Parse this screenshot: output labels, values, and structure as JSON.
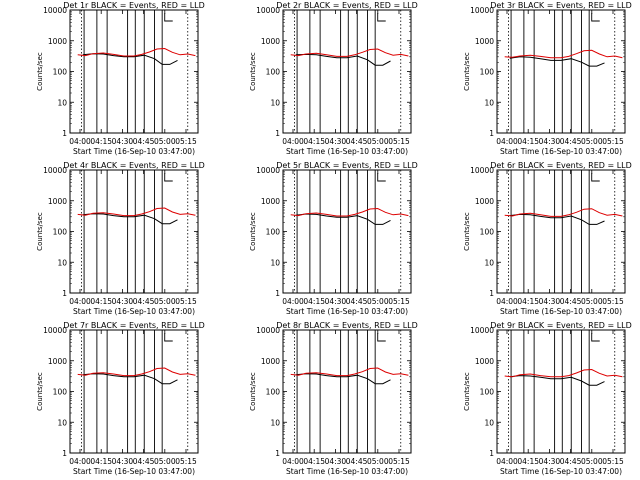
{
  "chart_data": [
    {
      "type": "line",
      "title": "Det 1r BLACK = Events, RED = LLD",
      "xlabel": "Start Time (16-Sep-10 03:47:00)",
      "ylabel": "Counts/sec",
      "yscale": "log",
      "ylim": [
        1,
        10000
      ],
      "xticks": [
        "04:00",
        "04:15",
        "04:30",
        "04:45",
        "05:00",
        "05:15"
      ],
      "yticks": [
        "1",
        "10",
        "100",
        "1000",
        "10000"
      ],
      "series": [
        {
          "name": "Events",
          "color": "#000000",
          "x": [
            0.1,
            0.18,
            0.26,
            0.34,
            0.42,
            0.5,
            0.58,
            0.66,
            0.72,
            0.78,
            0.84
          ],
          "y": [
            350,
            380,
            370,
            330,
            300,
            300,
            340,
            260,
            170,
            170,
            230
          ]
        },
        {
          "name": "LLD",
          "color": "#dd0000",
          "x": [
            0.06,
            0.12,
            0.18,
            0.26,
            0.34,
            0.42,
            0.5,
            0.56,
            0.62,
            0.68,
            0.74,
            0.8,
            0.86,
            0.92,
            0.98
          ],
          "y": [
            350,
            330,
            380,
            400,
            360,
            320,
            320,
            360,
            430,
            540,
            560,
            420,
            350,
            370,
            330
          ]
        }
      ]
    },
    {
      "type": "line",
      "title": "Det 2r BLACK = Events, RED = LLD",
      "xlabel": "Start Time (16-Sep-10 03:47:00)",
      "ylabel": "Counts/sec",
      "yscale": "log",
      "ylim": [
        1,
        10000
      ],
      "xticks": [
        "04:00",
        "04:15",
        "04:30",
        "04:45",
        "05:00",
        "05:15"
      ],
      "yticks": [
        "1",
        "10",
        "100",
        "1000",
        "10000"
      ],
      "series": [
        {
          "name": "Events",
          "color": "#000000",
          "x": [
            0.1,
            0.18,
            0.26,
            0.34,
            0.42,
            0.5,
            0.58,
            0.66,
            0.72,
            0.78,
            0.84
          ],
          "y": [
            350,
            360,
            350,
            310,
            280,
            280,
            320,
            240,
            160,
            160,
            220
          ]
        },
        {
          "name": "LLD",
          "color": "#dd0000",
          "x": [
            0.06,
            0.12,
            0.18,
            0.26,
            0.34,
            0.42,
            0.5,
            0.56,
            0.62,
            0.68,
            0.74,
            0.8,
            0.86,
            0.92,
            0.98
          ],
          "y": [
            350,
            330,
            370,
            390,
            350,
            310,
            310,
            350,
            420,
            520,
            540,
            410,
            340,
            360,
            320
          ]
        }
      ]
    },
    {
      "type": "line",
      "title": "Det 3r BLACK = Events, RED = LLD",
      "xlabel": "Start Time (16-Sep-10 03:47:00)",
      "ylabel": "Counts/sec",
      "yscale": "log",
      "ylim": [
        1,
        10000
      ],
      "xticks": [
        "04:00",
        "04:15",
        "04:30",
        "04:45",
        "05:00",
        "05:15"
      ],
      "yticks": [
        "1",
        "10",
        "100",
        "1000",
        "10000"
      ],
      "series": [
        {
          "name": "Events",
          "color": "#000000",
          "x": [
            0.1,
            0.18,
            0.26,
            0.34,
            0.42,
            0.5,
            0.58,
            0.66,
            0.72,
            0.78,
            0.84
          ],
          "y": [
            270,
            300,
            290,
            260,
            230,
            230,
            260,
            200,
            150,
            150,
            190
          ]
        },
        {
          "name": "LLD",
          "color": "#dd0000",
          "x": [
            0.06,
            0.12,
            0.18,
            0.26,
            0.34,
            0.42,
            0.5,
            0.56,
            0.62,
            0.68,
            0.74,
            0.8,
            0.86,
            0.92,
            0.98
          ],
          "y": [
            300,
            290,
            320,
            340,
            310,
            280,
            280,
            310,
            380,
            470,
            490,
            370,
            300,
            320,
            280
          ]
        }
      ]
    },
    {
      "type": "line",
      "title": "Det 4r BLACK = Events, RED = LLD",
      "xlabel": "Start Time (16-Sep-10 03:47:00)",
      "ylabel": "Counts/sec",
      "yscale": "log",
      "ylim": [
        1,
        10000
      ],
      "xticks": [
        "04:00",
        "04:15",
        "04:30",
        "04:45",
        "05:00",
        "05:15"
      ],
      "yticks": [
        "1",
        "10",
        "100",
        "1000",
        "10000"
      ],
      "series": [
        {
          "name": "Events",
          "color": "#000000",
          "x": [
            0.1,
            0.18,
            0.26,
            0.34,
            0.42,
            0.5,
            0.58,
            0.66,
            0.72,
            0.78,
            0.84
          ],
          "y": [
            350,
            380,
            370,
            330,
            300,
            300,
            340,
            260,
            180,
            180,
            240
          ]
        },
        {
          "name": "LLD",
          "color": "#dd0000",
          "x": [
            0.06,
            0.12,
            0.18,
            0.26,
            0.34,
            0.42,
            0.5,
            0.56,
            0.62,
            0.68,
            0.74,
            0.8,
            0.86,
            0.92,
            0.98
          ],
          "y": [
            360,
            340,
            390,
            410,
            370,
            330,
            330,
            370,
            440,
            560,
            580,
            430,
            360,
            380,
            340
          ]
        }
      ]
    },
    {
      "type": "line",
      "title": "Det 5r BLACK = Events, RED = LLD",
      "xlabel": "Start Time (16-Sep-10 03:47:00)",
      "ylabel": "Counts/sec",
      "yscale": "log",
      "ylim": [
        1,
        10000
      ],
      "xticks": [
        "04:00",
        "04:15",
        "04:30",
        "04:45",
        "05:00",
        "05:15"
      ],
      "yticks": [
        "1",
        "10",
        "100",
        "1000",
        "10000"
      ],
      "series": [
        {
          "name": "Events",
          "color": "#000000",
          "x": [
            0.1,
            0.18,
            0.26,
            0.34,
            0.42,
            0.5,
            0.58,
            0.66,
            0.72,
            0.78,
            0.84
          ],
          "y": [
            340,
            370,
            360,
            320,
            290,
            290,
            330,
            250,
            170,
            170,
            230
          ]
        },
        {
          "name": "LLD",
          "color": "#dd0000",
          "x": [
            0.06,
            0.12,
            0.18,
            0.26,
            0.34,
            0.42,
            0.5,
            0.56,
            0.62,
            0.68,
            0.74,
            0.8,
            0.86,
            0.92,
            0.98
          ],
          "y": [
            350,
            330,
            380,
            400,
            360,
            320,
            320,
            360,
            430,
            540,
            560,
            420,
            350,
            370,
            330
          ]
        }
      ]
    },
    {
      "type": "line",
      "title": "Det 6r BLACK = Events, RED = LLD",
      "xlabel": "Start Time (16-Sep-10 03:47:00)",
      "ylabel": "Counts/sec",
      "yscale": "log",
      "ylim": [
        1,
        10000
      ],
      "xticks": [
        "04:00",
        "04:15",
        "04:30",
        "04:45",
        "05:00",
        "05:15"
      ],
      "yticks": [
        "1",
        "10",
        "100",
        "1000",
        "10000"
      ],
      "series": [
        {
          "name": "Events",
          "color": "#000000",
          "x": [
            0.1,
            0.18,
            0.26,
            0.34,
            0.42,
            0.5,
            0.58,
            0.66,
            0.72,
            0.78,
            0.84
          ],
          "y": [
            330,
            360,
            350,
            310,
            280,
            280,
            320,
            240,
            170,
            170,
            220
          ]
        },
        {
          "name": "LLD",
          "color": "#dd0000",
          "x": [
            0.06,
            0.12,
            0.18,
            0.26,
            0.34,
            0.42,
            0.5,
            0.56,
            0.62,
            0.68,
            0.74,
            0.8,
            0.86,
            0.92,
            0.98
          ],
          "y": [
            340,
            320,
            370,
            390,
            350,
            310,
            310,
            350,
            420,
            530,
            550,
            410,
            340,
            360,
            320
          ]
        }
      ]
    },
    {
      "type": "line",
      "title": "Det 7r BLACK = Events, RED = LLD",
      "xlabel": "Start Time (16-Sep-10 03:47:00)",
      "ylabel": "Counts/sec",
      "yscale": "log",
      "ylim": [
        1,
        10000
      ],
      "xticks": [
        "04:00",
        "04:15",
        "04:30",
        "04:45",
        "05:00",
        "05:15"
      ],
      "yticks": [
        "1",
        "10",
        "100",
        "1000",
        "10000"
      ],
      "series": [
        {
          "name": "Events",
          "color": "#000000",
          "x": [
            0.1,
            0.18,
            0.26,
            0.34,
            0.42,
            0.5,
            0.58,
            0.66,
            0.72,
            0.78,
            0.84
          ],
          "y": [
            350,
            380,
            370,
            330,
            300,
            300,
            340,
            260,
            180,
            180,
            240
          ]
        },
        {
          "name": "LLD",
          "color": "#dd0000",
          "x": [
            0.06,
            0.12,
            0.18,
            0.26,
            0.34,
            0.42,
            0.5,
            0.56,
            0.62,
            0.68,
            0.74,
            0.8,
            0.86,
            0.92,
            0.98
          ],
          "y": [
            360,
            340,
            390,
            410,
            370,
            330,
            330,
            370,
            440,
            560,
            580,
            430,
            360,
            380,
            340
          ]
        }
      ]
    },
    {
      "type": "line",
      "title": "Det 8r BLACK = Events, RED = LLD",
      "xlabel": "Start Time (16-Sep-10 03:47:00)",
      "ylabel": "Counts/sec",
      "yscale": "log",
      "ylim": [
        1,
        10000
      ],
      "xticks": [
        "04:00",
        "04:15",
        "04:30",
        "04:45",
        "05:00",
        "05:15"
      ],
      "yticks": [
        "1",
        "10",
        "100",
        "1000",
        "10000"
      ],
      "series": [
        {
          "name": "Events",
          "color": "#000000",
          "x": [
            0.1,
            0.18,
            0.26,
            0.34,
            0.42,
            0.5,
            0.58,
            0.66,
            0.72,
            0.78,
            0.84
          ],
          "y": [
            350,
            380,
            370,
            330,
            300,
            300,
            340,
            260,
            180,
            180,
            240
          ]
        },
        {
          "name": "LLD",
          "color": "#dd0000",
          "x": [
            0.06,
            0.12,
            0.18,
            0.26,
            0.34,
            0.42,
            0.5,
            0.56,
            0.62,
            0.68,
            0.74,
            0.8,
            0.86,
            0.92,
            0.98
          ],
          "y": [
            360,
            340,
            390,
            410,
            370,
            330,
            330,
            370,
            440,
            560,
            580,
            430,
            360,
            380,
            340
          ]
        }
      ]
    },
    {
      "type": "line",
      "title": "Det 9r BLACK = Events, RED = LLD",
      "xlabel": "Start Time (16-Sep-10 03:47:00)",
      "ylabel": "Counts/sec",
      "yscale": "log",
      "ylim": [
        1,
        10000
      ],
      "xticks": [
        "04:00",
        "04:15",
        "04:30",
        "04:45",
        "05:00",
        "05:15"
      ],
      "yticks": [
        "1",
        "10",
        "100",
        "1000",
        "10000"
      ],
      "series": [
        {
          "name": "Events",
          "color": "#000000",
          "x": [
            0.1,
            0.18,
            0.26,
            0.34,
            0.42,
            0.5,
            0.58,
            0.66,
            0.72,
            0.78,
            0.84
          ],
          "y": [
            300,
            330,
            320,
            290,
            260,
            260,
            290,
            220,
            160,
            160,
            210
          ]
        },
        {
          "name": "LLD",
          "color": "#dd0000",
          "x": [
            0.06,
            0.12,
            0.18,
            0.26,
            0.34,
            0.42,
            0.5,
            0.56,
            0.62,
            0.68,
            0.74,
            0.8,
            0.86,
            0.92,
            0.98
          ],
          "y": [
            320,
            300,
            350,
            370,
            330,
            300,
            300,
            330,
            400,
            500,
            520,
            390,
            320,
            340,
            300
          ]
        }
      ]
    }
  ]
}
